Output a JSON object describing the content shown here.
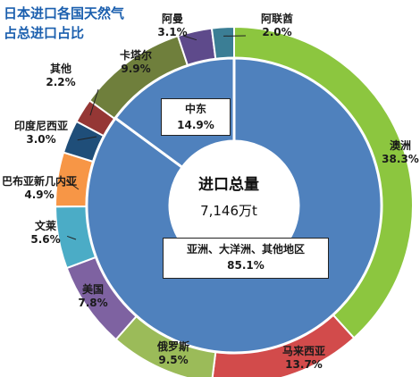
{
  "title_lines": [
    "日本进口各国天然气",
    "占总进口占比"
  ],
  "chart_data": {
    "type": "pie",
    "variant": "donut",
    "outer_ring": {
      "slices": [
        {
          "name": "澳洲",
          "pct": "38.3%",
          "value": 38.3,
          "color": "#8cc63f"
        },
        {
          "name": "马来西亚",
          "pct": "13.7%",
          "value": 13.7,
          "color": "#d24b4b"
        },
        {
          "name": "俄罗斯",
          "pct": "9.5%",
          "value": 9.5,
          "color": "#9bbb59"
        },
        {
          "name": "美国",
          "pct": "7.8%",
          "value": 7.8,
          "color": "#7e62a1"
        },
        {
          "name": "文莱",
          "pct": "5.6%",
          "value": 5.6,
          "color": "#4bacc6"
        },
        {
          "name": "巴布亚新几内亚",
          "pct": "4.9%",
          "value": 4.9,
          "color": "#f79646"
        },
        {
          "name": "印度尼西亚",
          "pct": "3.0%",
          "value": 3.0,
          "color": "#1f4e79"
        },
        {
          "name": "其他",
          "pct": "2.2%",
          "value": 2.2,
          "color": "#953735"
        },
        {
          "name": "卡塔尔",
          "pct": "9.9%",
          "value": 9.9,
          "color": "#6f7f3c"
        },
        {
          "name": "阿曼",
          "pct": "3.1%",
          "value": 3.1,
          "color": "#5e4a8b"
        },
        {
          "name": "阿联酋",
          "pct": "2.0%",
          "value": 2.0,
          "color": "#3b7e95"
        }
      ]
    },
    "inner_ring": {
      "slices": [
        {
          "name": "亚洲、大洋洲、其他地区",
          "pct": "85.1%",
          "value": 85.1,
          "color": "#4f81bd"
        },
        {
          "name": "中东",
          "pct": "14.9%",
          "value": 14.9,
          "color": "#4f81bd"
        }
      ]
    },
    "center": {
      "title": "进口总量",
      "value": "7,146万t"
    }
  }
}
